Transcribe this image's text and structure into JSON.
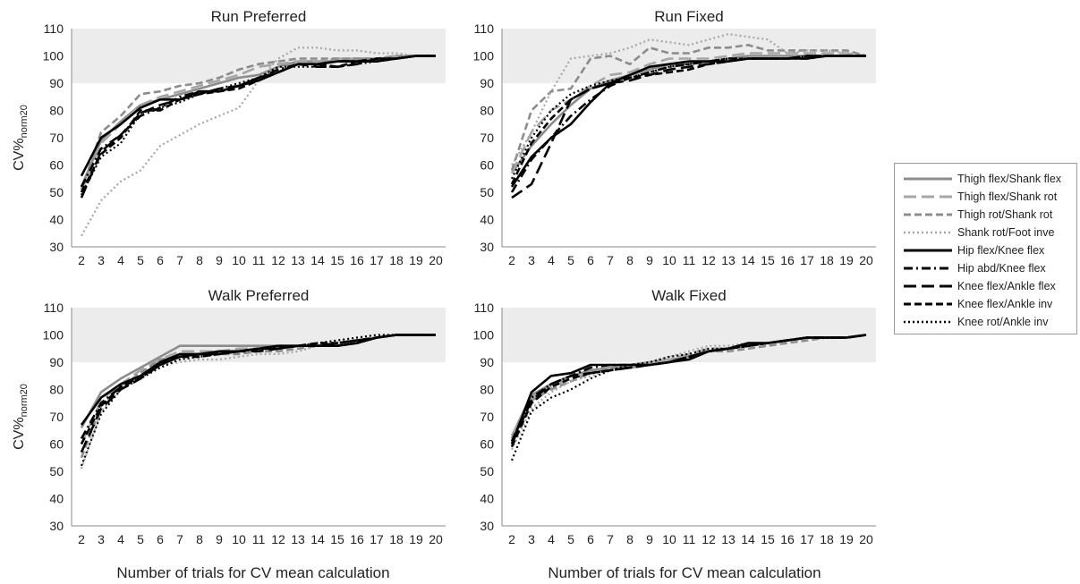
{
  "figure": {
    "ylabel_main": "CV%",
    "ylabel_sub": "norm20",
    "xlabel": "Number of trials for CV mean calculation",
    "band": [
      90,
      110
    ]
  },
  "legend": {
    "items": [
      {
        "label": "Thigh flex/Shank flex",
        "color": "#8c8c8c",
        "dash": "solid"
      },
      {
        "label": "Thigh flex/Shank rot",
        "color": "#a6a6a6",
        "dash": "longdash"
      },
      {
        "label": "Thigh rot/Shank rot",
        "color": "#8c8c8c",
        "dash": "dash"
      },
      {
        "label": "Shank rot/Foot inve",
        "color": "#a6a6a6",
        "dash": "dot"
      },
      {
        "label": "Hip flex/Knee flex",
        "color": "#000000",
        "dash": "solid"
      },
      {
        "label": "Hip abd/Knee flex",
        "color": "#000000",
        "dash": "dashdot"
      },
      {
        "label": "Knee flex/Ankle flex",
        "color": "#000000",
        "dash": "longdash"
      },
      {
        "label": "Knee flex/Ankle inv",
        "color": "#000000",
        "dash": "dash"
      },
      {
        "label": "Knee rot/Ankle inv",
        "color": "#000000",
        "dash": "dot"
      }
    ]
  },
  "chart_data": [
    {
      "type": "line",
      "title": "Run Preferred",
      "x": [
        2,
        3,
        4,
        5,
        6,
        7,
        8,
        9,
        10,
        11,
        12,
        13,
        14,
        15,
        16,
        17,
        18,
        19,
        20
      ],
      "ylim": [
        30,
        110
      ],
      "yticks": [
        30,
        40,
        50,
        60,
        70,
        80,
        90,
        100,
        110
      ],
      "series": [
        {
          "name": "Thigh flex/Shank flex",
          "values": [
            52,
            69,
            76,
            82,
            84,
            86,
            88,
            90,
            92,
            93,
            96,
            98,
            98,
            98,
            99,
            99,
            99,
            100,
            100
          ]
        },
        {
          "name": "Thigh flex/Shank rot",
          "values": [
            50,
            68,
            75,
            82,
            85,
            87,
            89,
            91,
            93,
            96,
            97,
            98,
            98,
            99,
            99,
            99,
            100,
            100,
            100
          ]
        },
        {
          "name": "Thigh rot/Shank rot",
          "values": [
            51,
            72,
            78,
            86,
            87,
            89,
            90,
            92,
            95,
            97,
            98,
            99,
            99,
            99,
            99,
            99,
            100,
            100,
            100
          ]
        },
        {
          "name": "Shank rot/Foot inve",
          "values": [
            34,
            47,
            54,
            58,
            67,
            71,
            75,
            78,
            81,
            91,
            99,
            103,
            103,
            102,
            102,
            101,
            101,
            100,
            100
          ]
        },
        {
          "name": "Hip flex/Knee flex",
          "values": [
            56,
            70,
            75,
            81,
            84,
            84,
            87,
            87,
            89,
            91,
            94,
            97,
            97,
            98,
            98,
            98,
            99,
            100,
            100
          ]
        },
        {
          "name": "Hip abd/Knee flex",
          "values": [
            52,
            66,
            71,
            78,
            81,
            85,
            87,
            87,
            89,
            92,
            95,
            97,
            97,
            98,
            98,
            99,
            99,
            100,
            100
          ]
        },
        {
          "name": "Knee flex/Ankle flex",
          "values": [
            48,
            65,
            71,
            79,
            82,
            84,
            86,
            88,
            89,
            92,
            94,
            97,
            96,
            96,
            97,
            99,
            99,
            100,
            100
          ]
        },
        {
          "name": "Knee flex/Ankle inv",
          "values": [
            50,
            64,
            70,
            80,
            80,
            84,
            86,
            87,
            88,
            91,
            94,
            97,
            97,
            96,
            98,
            98,
            99,
            100,
            100
          ]
        },
        {
          "name": "Knee rot/Ankle inv",
          "values": [
            49,
            63,
            68,
            79,
            81,
            83,
            86,
            88,
            90,
            92,
            96,
            96,
            96,
            96,
            97,
            98,
            99,
            100,
            100
          ]
        }
      ]
    },
    {
      "type": "line",
      "title": "Run Fixed",
      "x": [
        2,
        3,
        4,
        5,
        6,
        7,
        8,
        9,
        10,
        11,
        12,
        13,
        14,
        15,
        16,
        17,
        18,
        19,
        20
      ],
      "ylim": [
        30,
        110
      ],
      "yticks": [
        30,
        40,
        50,
        60,
        70,
        80,
        90,
        100,
        110
      ],
      "series": [
        {
          "name": "Thigh flex/Shank flex",
          "values": [
            57,
            67,
            75,
            82,
            88,
            91,
            93,
            95,
            97,
            97,
            98,
            99,
            100,
            100,
            100,
            100,
            100,
            100,
            100
          ]
        },
        {
          "name": "Thigh flex/Shank rot",
          "values": [
            57,
            72,
            80,
            84,
            89,
            93,
            94,
            97,
            99,
            99,
            99,
            100,
            101,
            101,
            101,
            101,
            101,
            101,
            100
          ]
        },
        {
          "name": "Thigh rot/Shank rot",
          "values": [
            58,
            80,
            87,
            88,
            99,
            100,
            97,
            103,
            101,
            101,
            103,
            103,
            104,
            102,
            102,
            102,
            102,
            102,
            100
          ]
        },
        {
          "name": "Shank rot/Foot inve",
          "values": [
            60,
            72,
            87,
            99,
            100,
            101,
            103,
            106,
            105,
            104,
            106,
            108,
            107,
            106,
            101,
            102,
            102,
            101,
            100
          ]
        },
        {
          "name": "Hip flex/Knee flex",
          "values": [
            52,
            63,
            70,
            75,
            83,
            90,
            93,
            96,
            97,
            98,
            98,
            98,
            99,
            99,
            99,
            99,
            100,
            100,
            100
          ]
        },
        {
          "name": "Hip abd/Knee flex",
          "values": [
            50,
            62,
            70,
            78,
            84,
            89,
            92,
            94,
            96,
            97,
            98,
            99,
            99,
            99,
            99,
            99,
            100,
            100,
            100
          ]
        },
        {
          "name": "Knee flex/Ankle flex",
          "values": [
            48,
            53,
            68,
            84,
            88,
            90,
            91,
            93,
            95,
            96,
            97,
            98,
            99,
            99,
            99,
            100,
            100,
            100,
            100
          ]
        },
        {
          "name": "Knee flex/Ankle inv",
          "values": [
            53,
            68,
            77,
            84,
            88,
            90,
            92,
            93,
            94,
            95,
            97,
            98,
            99,
            99,
            99,
            100,
            100,
            100,
            100
          ]
        },
        {
          "name": "Knee rot/Ankle inv",
          "values": [
            55,
            70,
            80,
            86,
            89,
            91,
            92,
            94,
            96,
            97,
            98,
            99,
            99,
            99,
            99,
            100,
            100,
            100,
            100
          ]
        }
      ]
    },
    {
      "type": "line",
      "title": "Walk Preferred",
      "x": [
        2,
        3,
        4,
        5,
        6,
        7,
        8,
        9,
        10,
        11,
        12,
        13,
        14,
        15,
        16,
        17,
        18,
        19,
        20
      ],
      "ylim": [
        30,
        110
      ],
      "yticks": [
        30,
        40,
        50,
        60,
        70,
        80,
        90,
        100,
        110
      ],
      "series": [
        {
          "name": "Thigh flex/Shank flex",
          "values": [
            66,
            79,
            84,
            88,
            92,
            96,
            96,
            96,
            96,
            96,
            96,
            96,
            96,
            96,
            98,
            99,
            100,
            100,
            100
          ]
        },
        {
          "name": "Thigh flex/Shank rot",
          "values": [
            60,
            76,
            82,
            87,
            91,
            94,
            94,
            94,
            95,
            95,
            95,
            96,
            96,
            97,
            98,
            99,
            100,
            100,
            100
          ]
        },
        {
          "name": "Thigh rot/Shank rot",
          "values": [
            55,
            74,
            81,
            86,
            91,
            92,
            93,
            93,
            93,
            94,
            94,
            95,
            96,
            97,
            98,
            99,
            100,
            100,
            100
          ]
        },
        {
          "name": "Shank rot/Foot inve",
          "values": [
            51,
            72,
            80,
            85,
            89,
            90,
            91,
            91,
            92,
            93,
            93,
            94,
            96,
            97,
            98,
            99,
            100,
            100,
            100
          ]
        },
        {
          "name": "Hip flex/Knee flex",
          "values": [
            67,
            77,
            82,
            85,
            90,
            93,
            93,
            94,
            94,
            95,
            96,
            96,
            96,
            96,
            97,
            99,
            100,
            100,
            100
          ]
        },
        {
          "name": "Hip abd/Knee flex",
          "values": [
            62,
            75,
            81,
            85,
            89,
            92,
            93,
            93,
            94,
            95,
            95,
            96,
            96,
            96,
            97,
            99,
            100,
            100,
            100
          ]
        },
        {
          "name": "Knee flex/Ankle flex",
          "values": [
            57,
            73,
            80,
            84,
            89,
            92,
            93,
            93,
            94,
            94,
            95,
            96,
            96,
            97,
            98,
            99,
            100,
            100,
            100
          ]
        },
        {
          "name": "Knee flex/Ankle inv",
          "values": [
            60,
            74,
            81,
            84,
            90,
            92,
            92,
            93,
            94,
            95,
            95,
            96,
            97,
            97,
            98,
            99,
            100,
            100,
            100
          ]
        },
        {
          "name": "Knee rot/Ankle inv",
          "values": [
            52,
            71,
            80,
            84,
            88,
            91,
            92,
            93,
            94,
            95,
            96,
            96,
            97,
            98,
            99,
            100,
            100,
            100,
            100
          ]
        }
      ]
    },
    {
      "type": "line",
      "title": "Walk Fixed",
      "x": [
        2,
        3,
        4,
        5,
        6,
        7,
        8,
        9,
        10,
        11,
        12,
        13,
        14,
        15,
        16,
        17,
        18,
        19,
        20
      ],
      "ylim": [
        30,
        110
      ],
      "yticks": [
        30,
        40,
        50,
        60,
        70,
        80,
        90,
        100,
        110
      ],
      "series": [
        {
          "name": "Thigh flex/Shank flex",
          "values": [
            63,
            78,
            82,
            85,
            87,
            88,
            89,
            90,
            91,
            92,
            94,
            95,
            96,
            97,
            98,
            99,
            99,
            99,
            100
          ]
        },
        {
          "name": "Thigh flex/Shank rot",
          "values": [
            63,
            77,
            81,
            84,
            86,
            88,
            89,
            90,
            91,
            93,
            95,
            95,
            96,
            97,
            98,
            99,
            99,
            99,
            100
          ]
        },
        {
          "name": "Thigh rot/Shank rot",
          "values": [
            62,
            76,
            80,
            83,
            86,
            88,
            88,
            89,
            90,
            92,
            94,
            94,
            95,
            96,
            97,
            98,
            99,
            99,
            100
          ]
        },
        {
          "name": "Shank rot/Foot inve",
          "values": [
            58,
            73,
            79,
            83,
            85,
            87,
            88,
            90,
            92,
            94,
            96,
            96,
            97,
            97,
            98,
            99,
            99,
            99,
            100
          ]
        },
        {
          "name": "Hip flex/Knee flex",
          "values": [
            60,
            79,
            85,
            86,
            89,
            89,
            89,
            89,
            90,
            91,
            94,
            95,
            97,
            97,
            98,
            99,
            99,
            99,
            100
          ]
        },
        {
          "name": "Hip abd/Knee flex",
          "values": [
            61,
            77,
            82,
            85,
            88,
            89,
            89,
            89,
            90,
            92,
            94,
            95,
            96,
            97,
            98,
            99,
            99,
            99,
            100
          ]
        },
        {
          "name": "Knee flex/Ankle flex",
          "values": [
            60,
            76,
            82,
            85,
            86,
            87,
            88,
            89,
            90,
            92,
            94,
            95,
            96,
            97,
            98,
            99,
            99,
            99,
            100
          ]
        },
        {
          "name": "Knee flex/Ankle inv",
          "values": [
            59,
            75,
            81,
            84,
            86,
            87,
            88,
            89,
            90,
            92,
            94,
            95,
            96,
            97,
            98,
            99,
            99,
            99,
            100
          ]
        },
        {
          "name": "Knee rot/Ankle inv",
          "values": [
            54,
            72,
            77,
            80,
            84,
            87,
            89,
            90,
            92,
            93,
            95,
            95,
            96,
            97,
            98,
            99,
            99,
            99,
            100
          ]
        }
      ]
    }
  ]
}
